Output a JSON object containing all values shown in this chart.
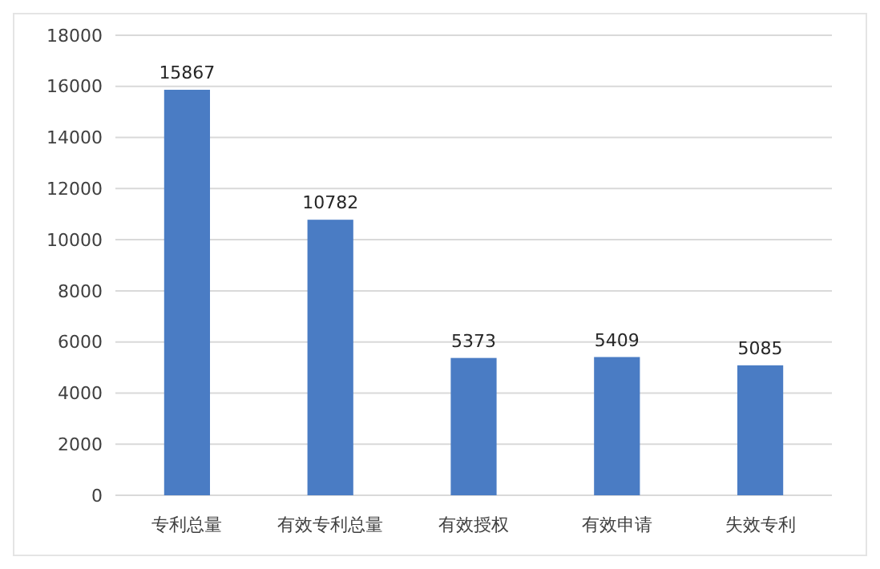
{
  "chart_data": {
    "type": "bar",
    "categories": [
      "专利总量",
      "有效专利总量",
      "有效授权",
      "有效申请",
      "失效专利"
    ],
    "values": [
      15867,
      10782,
      5373,
      5409,
      5085
    ],
    "color": "#4a7cc4",
    "ylim": [
      0,
      18000
    ],
    "yticks": [
      0,
      2000,
      4000,
      6000,
      8000,
      10000,
      12000,
      14000,
      16000,
      18000
    ],
    "grid": "y",
    "data_labels": true
  }
}
